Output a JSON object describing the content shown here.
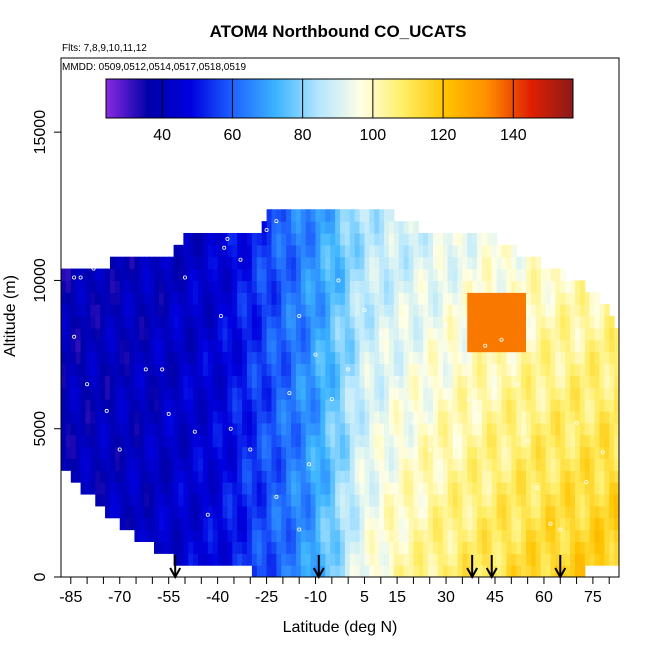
{
  "chart_data": {
    "type": "heatmap",
    "title": "ATOM4 Northbound CO_UCATS",
    "subtitle_flights": "Flts: 7,8,9,10,11,12",
    "subtitle_dates": "MMDD: 0509,0512,0514,0517,0518,0519",
    "xlabel": "Latitude (deg N)",
    "ylabel": "Altitude (m)",
    "xlim": [
      -88,
      83
    ],
    "ylim": [
      0,
      17500
    ],
    "x_tick_labels": [
      "-85",
      "-70",
      "-55",
      "-40",
      "-25",
      "-10",
      "5",
      "15",
      "30",
      "45",
      "60",
      "75"
    ],
    "x_tick_values": [
      -85,
      -70,
      -55,
      -40,
      -25,
      -10,
      5,
      15,
      30,
      45,
      60,
      75
    ],
    "y_ticks": [
      0,
      5000,
      10000,
      15000
    ],
    "y_tick_labels": [
      "0",
      "5000",
      "10000",
      "15000"
    ],
    "colorbar": {
      "min": 24,
      "max": 157,
      "ticks": [
        40,
        60,
        80,
        100,
        120,
        140
      ],
      "tick_labels": [
        "40",
        "60",
        "80",
        "100",
        "120",
        "140"
      ],
      "colors": [
        "#8a2be2",
        "#0000a8",
        "#0000e0",
        "#1e64ff",
        "#3cb4ff",
        "#b4e6ff",
        "#ffffe6",
        "#ffee66",
        "#ffc400",
        "#ff8c00",
        "#e02000",
        "#8b1a1a"
      ]
    },
    "arrow_latitudes": [
      -53,
      -9,
      38,
      44,
      65
    ],
    "field_model": {
      "profile_lat": [
        -88,
        -60,
        -40,
        -25,
        -12,
        -3,
        5,
        15,
        30,
        45,
        60,
        83
      ],
      "profile_low": [
        40,
        42,
        48,
        58,
        68,
        82,
        95,
        102,
        108,
        112,
        116,
        120
      ],
      "profile_high": [
        38,
        40,
        44,
        56,
        66,
        75,
        85,
        88,
        92,
        96,
        98,
        100
      ],
      "top_altitude_lat": [
        -85,
        -75,
        -70,
        -55,
        -50,
        -40,
        -28,
        -25,
        10,
        30,
        45,
        55,
        62,
        70,
        75,
        80,
        82
      ],
      "top_altitude_m": [
        10300,
        10300,
        10900,
        10900,
        11400,
        11400,
        11400,
        12400,
        12400,
        11400,
        11400,
        10800,
        10400,
        10000,
        9600,
        9000,
        8400
      ],
      "bottom_altitude_lat": [
        -88,
        -80,
        -72,
        -64,
        -56,
        -50,
        -40,
        -30,
        -20,
        -10,
        0,
        10,
        30,
        60,
        82
      ],
      "bottom_altitude_m": [
        3800,
        2800,
        2000,
        1300,
        700,
        400,
        300,
        200,
        150,
        100,
        50,
        50,
        50,
        50,
        300
      ],
      "pollution_plume": {
        "lat": [
          37,
          54
        ],
        "alt_m": [
          7800,
          9500
        ],
        "value": 135
      },
      "observation_points": [
        [
          -84,
          10100
        ],
        [
          -82,
          10100
        ],
        [
          -78,
          10400
        ],
        [
          -74,
          11000
        ],
        [
          -70,
          11100
        ],
        [
          -62,
          11500
        ],
        [
          -50,
          10100
        ],
        [
          -38,
          11100
        ],
        [
          -37,
          11400
        ],
        [
          -33,
          10700
        ],
        [
          -25,
          11700
        ],
        [
          -22,
          12000
        ],
        [
          -15,
          8800
        ],
        [
          -10,
          7500
        ],
        [
          -5,
          6000
        ],
        [
          -3,
          10000
        ],
        [
          0,
          7000
        ],
        [
          5,
          9000
        ],
        [
          10,
          8200
        ],
        [
          15,
          6700
        ],
        [
          20,
          5200
        ],
        [
          25,
          4300
        ],
        [
          30,
          8500
        ],
        [
          37,
          6000
        ],
        [
          42,
          7800
        ],
        [
          47,
          8000
        ],
        [
          52,
          6500
        ],
        [
          55,
          4600
        ],
        [
          58,
          3000
        ],
        [
          62,
          1800
        ],
        [
          65,
          1600
        ],
        [
          70,
          5200
        ],
        [
          73,
          3200
        ],
        [
          78,
          4200
        ],
        [
          -84,
          8100
        ],
        [
          -80,
          6500
        ],
        [
          -74,
          5600
        ],
        [
          -70,
          4300
        ],
        [
          -62,
          7000
        ],
        [
          -57,
          7000
        ],
        [
          -55,
          5500
        ],
        [
          -47,
          4900
        ],
        [
          -43,
          2100
        ],
        [
          -39,
          8800
        ],
        [
          -36,
          5000
        ],
        [
          -30,
          4300
        ],
        [
          -22,
          2700
        ],
        [
          -15,
          1600
        ],
        [
          -18,
          6200
        ],
        [
          -12,
          3800
        ]
      ]
    }
  }
}
